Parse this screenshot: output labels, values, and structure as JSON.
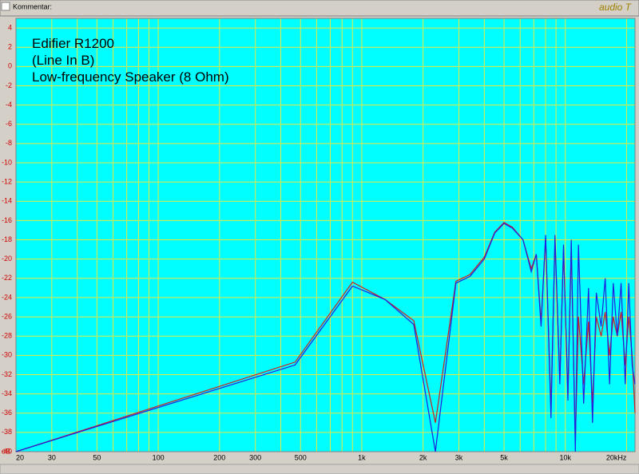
{
  "toolbar": {
    "label": "Kommentar:",
    "brand": "audio T"
  },
  "chart_data": {
    "type": "line",
    "log_x": true,
    "grid": true,
    "grid_color": "#e8e840",
    "plot_bg": "#00ffff",
    "y_unit": "dB",
    "annotations": [
      "Edifier R1200",
      "(Line In B)",
      "Low-frequency Speaker (8 Ohm)"
    ],
    "xlim": [
      20,
      22000
    ],
    "ylim": [
      -40,
      5
    ],
    "xticks": [
      20,
      30,
      50,
      100,
      200,
      300,
      500,
      {
        "value": 1000,
        "label": "1k"
      },
      {
        "value": 2000,
        "label": "2k"
      },
      {
        "value": 3000,
        "label": "3k"
      },
      {
        "value": 5000,
        "label": "5k"
      },
      {
        "value": 10000,
        "label": "10k"
      },
      {
        "value": 20000,
        "label": "20kHz"
      }
    ],
    "xgrid": [
      40,
      60,
      70,
      80,
      90,
      400,
      600,
      700,
      800,
      900,
      4000,
      6000,
      7000,
      8000,
      9000
    ],
    "yticks": [
      4,
      2,
      0,
      -2,
      -4,
      -6,
      -8,
      -10,
      -12,
      -14,
      -16,
      -18,
      -20,
      -22,
      -24,
      -26,
      -28,
      -30,
      -32,
      -34,
      -36,
      -38,
      -40
    ],
    "series": [
      {
        "name": "Red",
        "color": "#cc2020",
        "x": [
          20,
          470,
          900,
          1300,
          1800,
          2300,
          2900,
          3400,
          4000,
          4500,
          5000,
          5500,
          6200,
          6800,
          7200,
          7600,
          8000,
          8500,
          8900,
          9400,
          9800,
          10300,
          10700,
          11200,
          11600,
          12300,
          13000,
          13600,
          14200,
          15000,
          15700,
          16500,
          17200,
          18000,
          18800,
          19700,
          20500,
          21300,
          22000
        ],
        "values": [
          -40,
          -30.7,
          -22.4,
          -24.2,
          -26.4,
          -37,
          -22.3,
          -21.6,
          -19.8,
          -17.2,
          -16.2,
          -16.7,
          -18,
          -21,
          -19.5,
          -26.5,
          -17.8,
          -35.5,
          -18,
          -32.5,
          -19,
          -34,
          -19,
          -39,
          -26,
          -33,
          -26.5,
          -35,
          -26,
          -28,
          -25.5,
          -30,
          -26,
          -28,
          -25.5,
          -31,
          -26,
          -30,
          -36
        ]
      },
      {
        "name": "Blue",
        "color": "#2020e0",
        "x": [
          20,
          470,
          900,
          1300,
          1800,
          2300,
          2900,
          3400,
          4000,
          4500,
          5000,
          5500,
          6200,
          6800,
          7200,
          7600,
          8000,
          8500,
          8900,
          9400,
          9800,
          10300,
          10700,
          11200,
          11600,
          12300,
          13000,
          13600,
          14200,
          15000,
          15700,
          16500,
          17200,
          18000,
          18800,
          19700,
          20500,
          21300,
          22000
        ],
        "values": [
          -40,
          -31,
          -22.8,
          -24.2,
          -26.8,
          -40,
          -22.5,
          -21.8,
          -20,
          -17.3,
          -16.3,
          -16.8,
          -18,
          -21.3,
          -19.5,
          -27,
          -17.5,
          -36.5,
          -17.5,
          -33,
          -18.5,
          -34.7,
          -18,
          -40,
          -18.5,
          -35,
          -23,
          -37,
          -23.5,
          -27,
          -22,
          -33,
          -22.5,
          -28,
          -22.5,
          -33,
          -22.5,
          -31,
          -33
        ]
      }
    ]
  }
}
